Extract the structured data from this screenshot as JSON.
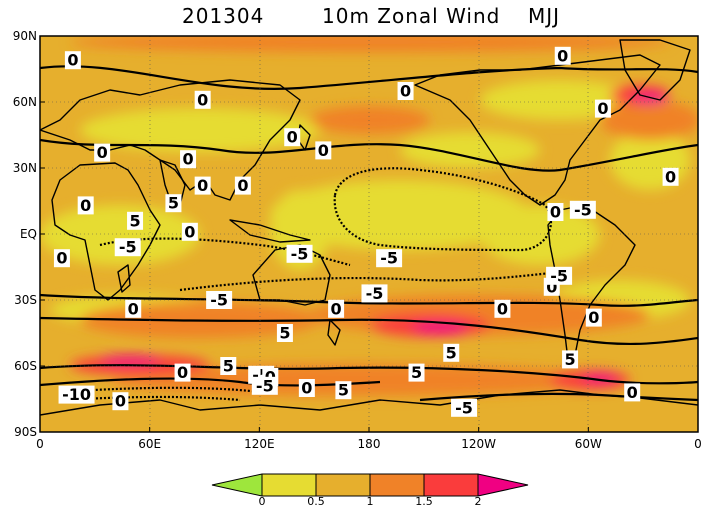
{
  "title": {
    "date": "201304",
    "name": "10m Zonal Wind",
    "season": "MJJ"
  },
  "map": {
    "lat_ticks": [
      "90N",
      "60N",
      "30N",
      "EQ",
      "30S",
      "60S",
      "90S"
    ],
    "lon_ticks": [
      "0",
      "60E",
      "120E",
      "180",
      "120W",
      "60W",
      "0"
    ],
    "colors": {
      "lt0": "#9ee63c",
      "c0_05": "#e6dc32",
      "c05_1": "#e6af2d",
      "c1_15": "#f08228",
      "c15_2": "#fa3c3c",
      "gt2": "#f00082",
      "contour": "#000000",
      "coast": "#000000"
    },
    "contour_labels": [
      {
        "text": "0",
        "lon": 18,
        "lat": 79
      },
      {
        "text": "0",
        "lon": 89,
        "lat": 61
      },
      {
        "text": "0",
        "lon": 200,
        "lat": 65
      },
      {
        "text": "0",
        "lon": 286,
        "lat": 81
      },
      {
        "text": "0",
        "lon": 308,
        "lat": 57
      },
      {
        "text": "0",
        "lon": 138,
        "lat": 44
      },
      {
        "text": "0",
        "lon": 155,
        "lat": 38
      },
      {
        "text": "0",
        "lon": 34,
        "lat": 37
      },
      {
        "text": "0",
        "lon": 81,
        "lat": 34
      },
      {
        "text": "5",
        "lon": 73,
        "lat": 14
      },
      {
        "text": "0",
        "lon": 89,
        "lat": 22
      },
      {
        "text": "0",
        "lon": 111,
        "lat": 22
      },
      {
        "text": "0",
        "lon": 25,
        "lat": 13
      },
      {
        "text": "5",
        "lon": 52,
        "lat": 6
      },
      {
        "text": "0",
        "lon": 82,
        "lat": 1
      },
      {
        "text": "-5",
        "lon": 48,
        "lat": -6
      },
      {
        "text": "0",
        "lon": 12,
        "lat": -11
      },
      {
        "text": "-5",
        "lon": 142,
        "lat": -9
      },
      {
        "text": "-5",
        "lon": 191,
        "lat": -11
      },
      {
        "text": "0",
        "lon": 280,
        "lat": -24
      },
      {
        "text": "0",
        "lon": 282,
        "lat": 10
      },
      {
        "text": "-5",
        "lon": 297,
        "lat": 11
      },
      {
        "text": "0",
        "lon": 345,
        "lat": 26
      },
      {
        "text": "-5",
        "lon": 284,
        "lat": -19
      },
      {
        "text": "-5",
        "lon": 98,
        "lat": -30
      },
      {
        "text": "-5",
        "lon": 183,
        "lat": -27
      },
      {
        "text": "0",
        "lon": 51,
        "lat": -34
      },
      {
        "text": "0",
        "lon": 162,
        "lat": -34
      },
      {
        "text": "0",
        "lon": 253,
        "lat": -34
      },
      {
        "text": "0",
        "lon": 303,
        "lat": -38
      },
      {
        "text": "5",
        "lon": 134,
        "lat": -45
      },
      {
        "text": "5",
        "lon": 225,
        "lat": -54
      },
      {
        "text": "5",
        "lon": 290,
        "lat": -57
      },
      {
        "text": "5",
        "lon": 103,
        "lat": -60
      },
      {
        "text": "0",
        "lon": 78,
        "lat": -63
      },
      {
        "text": "-5",
        "lon": 121,
        "lat": -64
      },
      {
        "text": "0",
        "lon": 126,
        "lat": -65
      },
      {
        "text": "-5",
        "lon": 123,
        "lat": -69
      },
      {
        "text": "0",
        "lon": 146,
        "lat": -70
      },
      {
        "text": "5",
        "lon": 166,
        "lat": -71
      },
      {
        "text": "5",
        "lon": 206,
        "lat": -63
      },
      {
        "text": "-10",
        "lon": 20,
        "lat": -73
      },
      {
        "text": "0",
        "lon": 44,
        "lat": -76
      },
      {
        "text": "-5",
        "lon": 232,
        "lat": -79
      },
      {
        "text": "0",
        "lon": 324,
        "lat": -72
      }
    ]
  },
  "colorbar": {
    "labels": [
      "0",
      "0.5",
      "1",
      "1.5",
      "2"
    ]
  }
}
